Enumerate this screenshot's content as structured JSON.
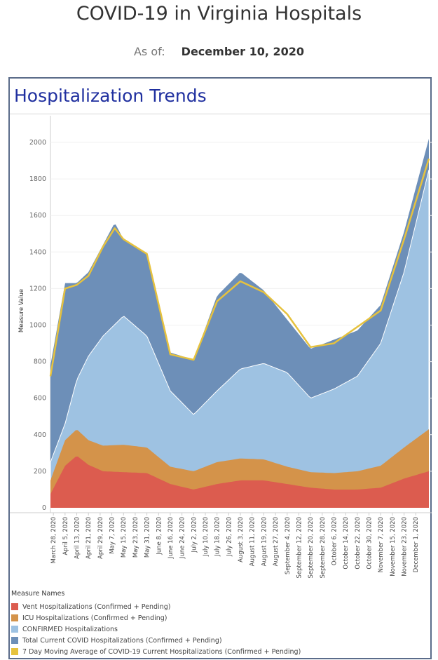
{
  "header": {
    "title": "COVID-19 in Virginia Hospitals",
    "asof_label": "As of:",
    "asof_value": "December 10, 2020"
  },
  "panel": {
    "title": "Hospitalization Trends"
  },
  "colors": {
    "vent": "#dc5c4f",
    "icu": "#d4934a",
    "confirmed": "#9ec2e2",
    "total": "#6d8fb8",
    "avg": "#e6c23e"
  },
  "chart_data": {
    "type": "area",
    "ylabel": "Measure Value",
    "ylim": [
      0,
      2100
    ],
    "yticks": [
      0,
      200,
      400,
      600,
      800,
      1000,
      1200,
      1400,
      1600,
      1800,
      2000
    ],
    "x_start": "2020-03-26",
    "x_end": "2020-12-10",
    "xtick_labels": [
      {
        "date": "2020-03-28",
        "label": "March 28, 2020"
      },
      {
        "date": "2020-04-05",
        "label": "April 5, 2020"
      },
      {
        "date": "2020-04-13",
        "label": "April 13, 2020"
      },
      {
        "date": "2020-04-21",
        "label": "April 21, 2020"
      },
      {
        "date": "2020-04-29",
        "label": "April 29, 2020"
      },
      {
        "date": "2020-05-07",
        "label": "May 7, 2020"
      },
      {
        "date": "2020-05-15",
        "label": "May 15, 2020"
      },
      {
        "date": "2020-05-23",
        "label": "May 23, 2020"
      },
      {
        "date": "2020-05-31",
        "label": "May 31, 2020"
      },
      {
        "date": "2020-06-08",
        "label": "June 8, 2020"
      },
      {
        "date": "2020-06-16",
        "label": "June 16, 2020"
      },
      {
        "date": "2020-06-24",
        "label": "June 24, 2020"
      },
      {
        "date": "2020-07-02",
        "label": "July 2, 2020"
      },
      {
        "date": "2020-07-10",
        "label": "July 10, 2020"
      },
      {
        "date": "2020-07-18",
        "label": "July 18, 2020"
      },
      {
        "date": "2020-07-26",
        "label": "July 26, 2020"
      },
      {
        "date": "2020-08-03",
        "label": "August 3, 2020"
      },
      {
        "date": "2020-08-11",
        "label": "August 11, 2020"
      },
      {
        "date": "2020-08-19",
        "label": "August 19, 2020"
      },
      {
        "date": "2020-08-27",
        "label": "August 27, 2020"
      },
      {
        "date": "2020-09-04",
        "label": "September 4, 2020"
      },
      {
        "date": "2020-09-12",
        "label": "September 12, 2020"
      },
      {
        "date": "2020-09-20",
        "label": "September 20, 2020"
      },
      {
        "date": "2020-09-28",
        "label": "September 28, 2020"
      },
      {
        "date": "2020-10-06",
        "label": "October 6, 2020"
      },
      {
        "date": "2020-10-14",
        "label": "October 14, 2020"
      },
      {
        "date": "2020-10-22",
        "label": "October 22, 2020"
      },
      {
        "date": "2020-10-30",
        "label": "October 30, 2020"
      },
      {
        "date": "2020-11-07",
        "label": "November 7, 2020"
      },
      {
        "date": "2020-11-15",
        "label": "November 15, 2020"
      },
      {
        "date": "2020-11-23",
        "label": "November 23, 2020"
      },
      {
        "date": "2020-12-01",
        "label": "December 1, 2020"
      }
    ],
    "legend_title": "Measure Names",
    "series": [
      {
        "name": "Vent Hospitalizations (Confirmed + Pending)",
        "key": "vent",
        "x": [
          "2020-03-26",
          "2020-04-05",
          "2020-04-13",
          "2020-04-21",
          "2020-05-01",
          "2020-05-15",
          "2020-05-31",
          "2020-06-16",
          "2020-07-02",
          "2020-07-18",
          "2020-08-03",
          "2020-08-19",
          "2020-09-04",
          "2020-09-20",
          "2020-10-06",
          "2020-10-22",
          "2020-11-07",
          "2020-11-23",
          "2020-12-10"
        ],
        "y": [
          75,
          230,
          285,
          235,
          200,
          195,
          190,
          130,
          100,
          130,
          150,
          150,
          130,
          110,
          100,
          100,
          110,
          160,
          200
        ]
      },
      {
        "name": "ICU Hospitalizations (Confirmed + Pending)",
        "key": "icu",
        "x": [
          "2020-03-26",
          "2020-04-05",
          "2020-04-13",
          "2020-04-21",
          "2020-05-01",
          "2020-05-15",
          "2020-05-31",
          "2020-06-16",
          "2020-07-02",
          "2020-07-18",
          "2020-08-03",
          "2020-08-19",
          "2020-09-04",
          "2020-09-20",
          "2020-10-06",
          "2020-10-22",
          "2020-11-07",
          "2020-11-23",
          "2020-12-10"
        ],
        "y": [
          150,
          370,
          430,
          370,
          340,
          345,
          330,
          225,
          200,
          250,
          270,
          265,
          225,
          195,
          190,
          200,
          230,
          330,
          430
        ]
      },
      {
        "name": "CONFIRMED Hospitalizations",
        "key": "confirmed",
        "x": [
          "2020-03-26",
          "2020-04-05",
          "2020-04-13",
          "2020-04-21",
          "2020-05-01",
          "2020-05-15",
          "2020-05-31",
          "2020-06-16",
          "2020-07-02",
          "2020-07-18",
          "2020-08-03",
          "2020-08-19",
          "2020-09-04",
          "2020-09-20",
          "2020-10-06",
          "2020-10-22",
          "2020-11-07",
          "2020-11-23",
          "2020-12-10"
        ],
        "y": [
          250,
          460,
          700,
          830,
          940,
          1050,
          940,
          640,
          510,
          640,
          760,
          790,
          740,
          600,
          650,
          720,
          900,
          1290,
          1850
        ]
      },
      {
        "name": "Total Current COVID Hospitalizations (Confirmed + Pending)",
        "key": "total",
        "x": [
          "2020-03-26",
          "2020-04-05",
          "2020-04-13",
          "2020-04-21",
          "2020-05-01",
          "2020-05-09",
          "2020-05-15",
          "2020-05-31",
          "2020-06-16",
          "2020-07-02",
          "2020-07-18",
          "2020-08-03",
          "2020-08-19",
          "2020-09-04",
          "2020-09-20",
          "2020-10-06",
          "2020-10-22",
          "2020-11-07",
          "2020-11-23",
          "2020-12-10"
        ],
        "y": [
          780,
          1230,
          1230,
          1290,
          1440,
          1560,
          1470,
          1390,
          850,
          810,
          1160,
          1290,
          1190,
          1030,
          870,
          920,
          970,
          1110,
          1510,
          2020
        ]
      },
      {
        "name": "7 Day Moving Average of COVID-19 Current Hospitalizations (Confirmed + Pending)",
        "key": "avg",
        "x": [
          "2020-03-26",
          "2020-04-05",
          "2020-04-13",
          "2020-04-21",
          "2020-05-01",
          "2020-05-09",
          "2020-05-15",
          "2020-05-31",
          "2020-06-16",
          "2020-07-02",
          "2020-07-18",
          "2020-08-03",
          "2020-08-19",
          "2020-09-04",
          "2020-09-20",
          "2020-10-06",
          "2020-10-22",
          "2020-11-07",
          "2020-11-23",
          "2020-12-10"
        ],
        "y": [
          720,
          1200,
          1220,
          1270,
          1430,
          1530,
          1470,
          1390,
          840,
          810,
          1130,
          1240,
          1180,
          1060,
          880,
          900,
          990,
          1080,
          1470,
          1910
        ]
      }
    ]
  }
}
